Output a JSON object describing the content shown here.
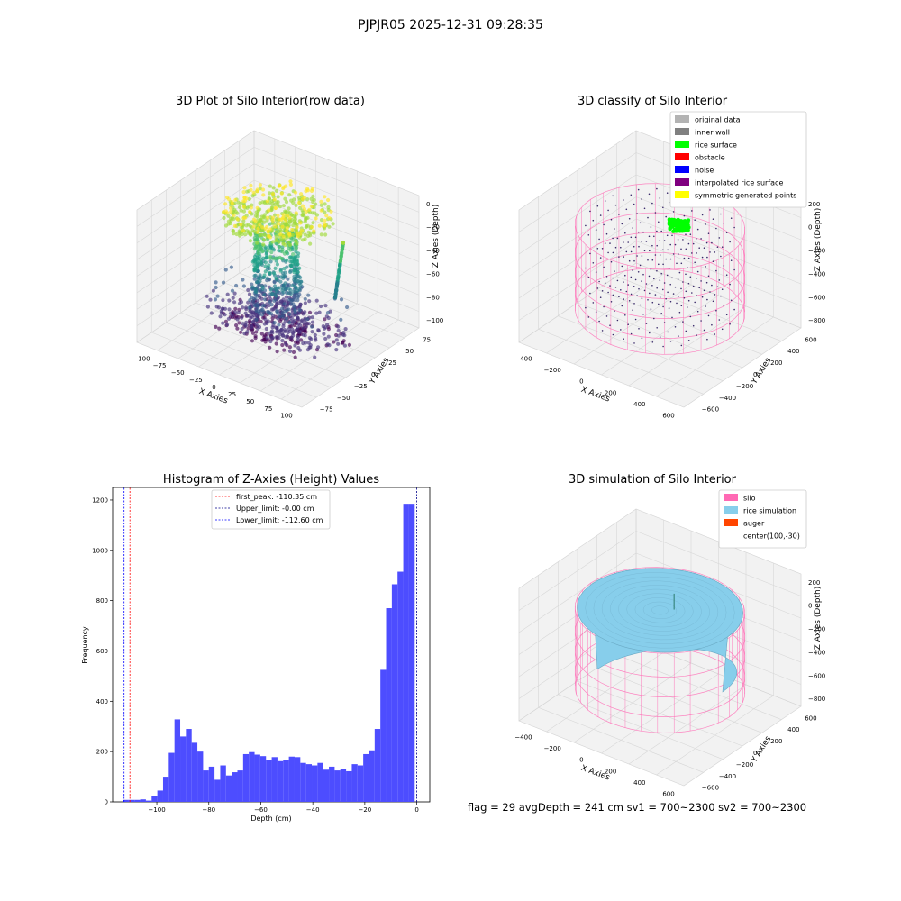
{
  "figure": {
    "suptitle": "PJPJR05 2025-12-31 09:28:35",
    "footer": "flag = 29  avgDepth = 241 cm  sv1 = 700~2300  sv2 = 700~2300"
  },
  "colors": {
    "pane": "#f2f2f2",
    "grid": "#d7d7d7",
    "histogram": "#4d4dff",
    "first_peak": "#ff0000",
    "upper_limit": "#00008b",
    "lower_limit": "#0000ff",
    "silo_wire": "#ff69b4",
    "rice_fill": "#87ceeb",
    "rice_surface": "#00ff00"
  },
  "chart_data": [
    {
      "type": "scatter",
      "title": "3D Plot of Silo Interior(row data)",
      "xlabel": "X Axies",
      "ylabel": "Y Axies",
      "zlabel": "Z Axies (Depth)",
      "x_ticks": [
        "−100",
        "−75",
        "−50",
        "−25",
        "0",
        "25",
        "50",
        "75",
        "100"
      ],
      "y_ticks": [
        "−75",
        "−50",
        "−25",
        "0",
        "25",
        "50",
        "75"
      ],
      "z_ticks": [
        "0",
        "−20",
        "−40",
        "−60",
        "−80",
        "−100"
      ],
      "xlim": [
        -110,
        110
      ],
      "ylim": [
        -90,
        90
      ],
      "zlim": [
        -115,
        5
      ],
      "colormap": "viridis"
    },
    {
      "type": "scatter",
      "title": "3D classify of Silo Interior",
      "xlabel": "X Axies",
      "ylabel": "Y Axies",
      "zlabel": "Z Axies (Depth)",
      "x_ticks": [
        "−400",
        "−200",
        "0",
        "200",
        "400",
        "600"
      ],
      "y_ticks": [
        "−600",
        "−400",
        "−200",
        "0",
        "200",
        "400",
        "600"
      ],
      "z_ticks": [
        "200",
        "0",
        "−200",
        "−400",
        "−600",
        "−800"
      ],
      "legend": [
        {
          "label": "original data",
          "color": "#b3b3b3"
        },
        {
          "label": "inner wall",
          "color": "#808080"
        },
        {
          "label": "rice surface",
          "color": "#00ff00"
        },
        {
          "label": "obstacle",
          "color": "#ff0000"
        },
        {
          "label": "noise",
          "color": "#0000ff"
        },
        {
          "label": "interpolated rice surface",
          "color": "#800080"
        },
        {
          "label": "symmetric generated points",
          "color": "#ffff00"
        }
      ],
      "legend_position": "top-right"
    },
    {
      "type": "bar",
      "title": "Histogram of Z-Axies (Height) Values",
      "xlabel": "Depth (cm)",
      "ylabel": "Frequency",
      "xlim": [
        -117,
        5
      ],
      "ylim": [
        0,
        1250
      ],
      "x_ticks": [
        -100,
        -80,
        -60,
        -40,
        -20,
        0
      ],
      "y_ticks": [
        0,
        200,
        400,
        600,
        800,
        1000,
        1200
      ],
      "bin_start": -113,
      "bin_width": 2.2,
      "values": [
        8,
        8,
        8,
        10,
        5,
        22,
        45,
        100,
        195,
        328,
        260,
        290,
        235,
        200,
        125,
        140,
        88,
        145,
        105,
        118,
        125,
        190,
        198,
        188,
        182,
        165,
        178,
        162,
        168,
        180,
        178,
        155,
        150,
        145,
        155,
        128,
        140,
        125,
        130,
        122,
        150,
        145,
        190,
        205,
        290,
        525,
        770,
        865,
        915,
        1185,
        1185
      ],
      "lines": [
        {
          "label": "first_peak: -110.35 cm",
          "x": -110.35,
          "color": "#ff0000"
        },
        {
          "label": "Upper_limit: -0.00 cm",
          "x": 0,
          "color": "#00008b"
        },
        {
          "label": "Lower_limit: -112.60 cm",
          "x": -112.6,
          "color": "#0000ff"
        }
      ],
      "legend_position": "top-center"
    },
    {
      "type": "area",
      "title": "3D simulation of Silo Interior",
      "xlabel": "X Axies",
      "ylabel": "Y Axies",
      "zlabel": "Z Axies (Depth)",
      "x_ticks": [
        "−400",
        "−200",
        "0",
        "200",
        "400",
        "600"
      ],
      "y_ticks": [
        "−600",
        "−400",
        "−200",
        "0",
        "200",
        "400",
        "600"
      ],
      "z_ticks": [
        "200",
        "0",
        "−200",
        "−400",
        "−600",
        "−800"
      ],
      "legend": [
        {
          "label": "silo",
          "color": "#ff69b4"
        },
        {
          "label": "rice simulation",
          "color": "#87ceeb"
        },
        {
          "label": "auger",
          "color": "#ff4500"
        },
        {
          "label": "center(100,-30)",
          "color": ""
        }
      ],
      "legend_position": "top-right"
    }
  ]
}
